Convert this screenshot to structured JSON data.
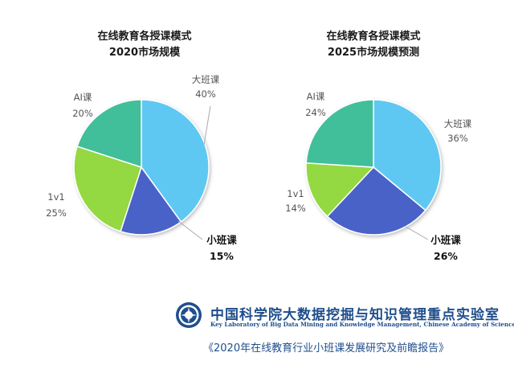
{
  "chart_data": [
    {
      "type": "pie",
      "title_line1": "在线教育各授课模式",
      "title_line2": "2020市场规模",
      "categories": [
        "大班课",
        "小班课",
        "1v1",
        "AI课"
      ],
      "values": [
        40,
        15,
        25,
        20
      ],
      "value_labels": [
        "40%",
        "15%",
        "25%",
        "20%"
      ],
      "colors": [
        "#5ec8f2",
        "#4a62c8",
        "#94d843",
        "#3fbf9a"
      ]
    },
    {
      "type": "pie",
      "title_line1": "在线教育各授课模式",
      "title_line2": "2025市场规模预测",
      "categories": [
        "大班课",
        "小班课",
        "1v1",
        "AI课"
      ],
      "values": [
        36,
        26,
        14,
        24
      ],
      "value_labels": [
        "36%",
        "26%",
        "14%",
        "24%"
      ],
      "colors": [
        "#5ec8f2",
        "#4a62c8",
        "#94d843",
        "#3fbf9a"
      ]
    }
  ],
  "footer": {
    "lab_name_cn": "中国科学院大数据挖掘与知识管理重点实验室",
    "lab_name_en": "Key Laboratory of Big Data Mining and Knowledge Management, Chinese Academy of Sciences",
    "report_title": "《2020年在线教育行业小班课发展研究及前瞻报告》"
  }
}
